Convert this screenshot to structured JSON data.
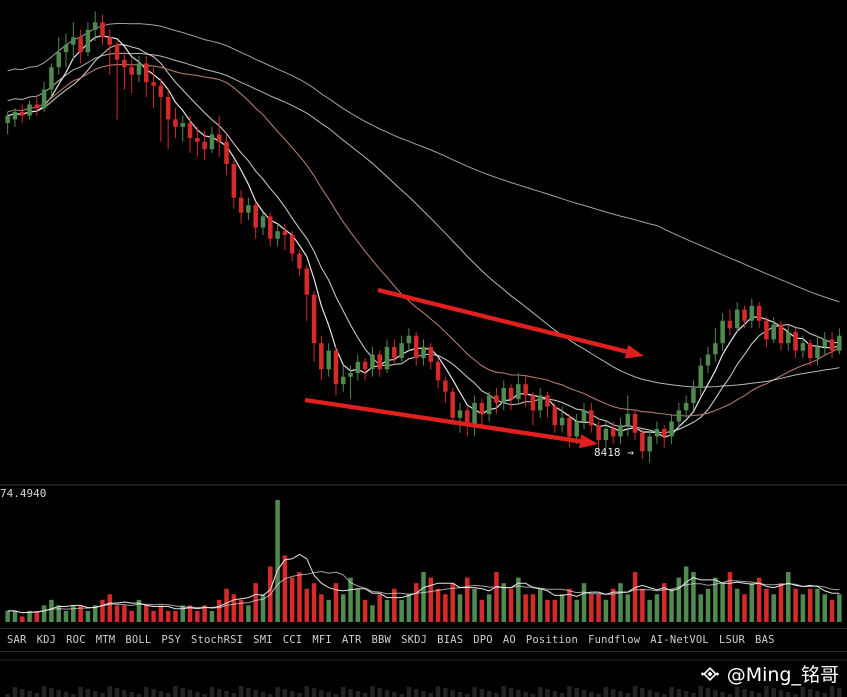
{
  "chart_data": {
    "type": "candlestick",
    "price_label": "8418 →",
    "volume_label": "74.4940",
    "colors": {
      "up": "#4f8a4f",
      "down": "#d42a2a",
      "arrow": "#e01f1f",
      "ma_light": "#e6e6e6",
      "ma_brown": "#b07a6a",
      "background": "#000000"
    },
    "candles": [
      [
        0.51,
        0.53,
        0.48,
        0.54
      ],
      [
        0.52,
        0.54,
        0.5,
        0.55
      ],
      [
        0.54,
        0.53,
        0.51,
        0.56
      ],
      [
        0.53,
        0.56,
        0.52,
        0.57
      ],
      [
        0.56,
        0.55,
        0.53,
        0.58
      ],
      [
        0.55,
        0.6,
        0.54,
        0.62
      ],
      [
        0.6,
        0.66,
        0.58,
        0.67
      ],
      [
        0.66,
        0.7,
        0.64,
        0.74
      ],
      [
        0.7,
        0.72,
        0.66,
        0.75
      ],
      [
        0.72,
        0.74,
        0.68,
        0.78
      ],
      [
        0.74,
        0.7,
        0.67,
        0.76
      ],
      [
        0.7,
        0.76,
        0.69,
        0.78
      ],
      [
        0.76,
        0.78,
        0.73,
        0.81
      ],
      [
        0.78,
        0.74,
        0.72,
        0.8
      ],
      [
        0.74,
        0.72,
        0.64,
        0.76
      ],
      [
        0.72,
        0.68,
        0.52,
        0.73
      ],
      [
        0.68,
        0.66,
        0.6,
        0.7
      ],
      [
        0.66,
        0.64,
        0.59,
        0.68
      ],
      [
        0.64,
        0.67,
        0.62,
        0.69
      ],
      [
        0.67,
        0.62,
        0.58,
        0.69
      ],
      [
        0.62,
        0.61,
        0.55,
        0.66
      ],
      [
        0.61,
        0.58,
        0.46,
        0.63
      ],
      [
        0.58,
        0.52,
        0.44,
        0.6
      ],
      [
        0.52,
        0.5,
        0.47,
        0.55
      ],
      [
        0.5,
        0.51,
        0.46,
        0.53
      ],
      [
        0.51,
        0.47,
        0.43,
        0.53
      ],
      [
        0.47,
        0.46,
        0.42,
        0.5
      ],
      [
        0.46,
        0.44,
        0.41,
        0.49
      ],
      [
        0.44,
        0.48,
        0.43,
        0.5
      ],
      [
        0.48,
        0.46,
        0.42,
        0.53
      ],
      [
        0.46,
        0.4,
        0.37,
        0.48
      ],
      [
        0.4,
        0.31,
        0.28,
        0.41
      ],
      [
        0.31,
        0.27,
        0.24,
        0.33
      ],
      [
        0.27,
        0.29,
        0.25,
        0.31
      ],
      [
        0.29,
        0.23,
        0.2,
        0.3
      ],
      [
        0.23,
        0.26,
        0.21,
        0.27
      ],
      [
        0.26,
        0.2,
        0.18,
        0.27
      ],
      [
        0.2,
        0.22,
        0.18,
        0.24
      ],
      [
        0.22,
        0.21,
        0.17,
        0.24
      ],
      [
        0.21,
        0.16,
        0.14,
        0.22
      ],
      [
        0.16,
        0.12,
        0.1,
        0.17
      ],
      [
        0.12,
        0.05,
        -0.02,
        0.13
      ],
      [
        0.05,
        -0.08,
        -0.13,
        0.06
      ],
      [
        -0.08,
        -0.15,
        -0.18,
        -0.06
      ],
      [
        -0.15,
        -0.1,
        -0.17,
        -0.08
      ],
      [
        -0.1,
        -0.19,
        -0.22,
        -0.09
      ],
      [
        -0.19,
        -0.17,
        -0.21,
        -0.14
      ],
      [
        -0.17,
        -0.16,
        -0.23,
        -0.14
      ],
      [
        -0.16,
        -0.13,
        -0.18,
        -0.11
      ],
      [
        -0.13,
        -0.15,
        -0.18,
        -0.12
      ],
      [
        -0.15,
        -0.11,
        -0.17,
        -0.09
      ],
      [
        -0.11,
        -0.15,
        -0.17,
        -0.1
      ],
      [
        -0.15,
        -0.09,
        -0.16,
        -0.07
      ],
      [
        -0.09,
        -0.12,
        -0.14,
        -0.07
      ],
      [
        -0.12,
        -0.08,
        -0.13,
        -0.06
      ],
      [
        -0.08,
        -0.06,
        -0.1,
        -0.04
      ],
      [
        -0.06,
        -0.12,
        -0.14,
        -0.05
      ],
      [
        -0.12,
        -0.09,
        -0.14,
        -0.07
      ],
      [
        -0.09,
        -0.13,
        -0.15,
        -0.08
      ],
      [
        -0.13,
        -0.18,
        -0.2,
        -0.12
      ],
      [
        -0.18,
        -0.21,
        -0.24,
        -0.17
      ],
      [
        -0.21,
        -0.28,
        -0.3,
        -0.2
      ],
      [
        -0.28,
        -0.26,
        -0.32,
        -0.24
      ],
      [
        -0.26,
        -0.3,
        -0.33,
        -0.25
      ],
      [
        -0.3,
        -0.24,
        -0.33,
        -0.22
      ],
      [
        -0.24,
        -0.27,
        -0.3,
        -0.23
      ],
      [
        -0.27,
        -0.22,
        -0.29,
        -0.21
      ],
      [
        -0.22,
        -0.24,
        -0.27,
        -0.2
      ],
      [
        -0.24,
        -0.2,
        -0.26,
        -0.18
      ],
      [
        -0.2,
        -0.23,
        -0.26,
        -0.19
      ],
      [
        -0.23,
        -0.19,
        -0.24,
        -0.16
      ],
      [
        -0.19,
        -0.22,
        -0.25,
        -0.17
      ],
      [
        -0.22,
        -0.26,
        -0.3,
        -0.21
      ],
      [
        -0.26,
        -0.22,
        -0.28,
        -0.2
      ],
      [
        -0.22,
        -0.25,
        -0.28,
        -0.21
      ],
      [
        -0.25,
        -0.3,
        -0.32,
        -0.24
      ],
      [
        -0.3,
        -0.28,
        -0.32,
        -0.25
      ],
      [
        -0.28,
        -0.33,
        -0.36,
        -0.27
      ],
      [
        -0.33,
        -0.29,
        -0.35,
        -0.27
      ],
      [
        -0.29,
        -0.26,
        -0.31,
        -0.24
      ],
      [
        -0.26,
        -0.3,
        -0.32,
        -0.24
      ],
      [
        -0.3,
        -0.34,
        -0.37,
        -0.29
      ],
      [
        -0.34,
        -0.31,
        -0.36,
        -0.29
      ],
      [
        -0.31,
        -0.33,
        -0.35,
        -0.29
      ],
      [
        -0.33,
        -0.3,
        -0.35,
        -0.28
      ],
      [
        -0.3,
        -0.27,
        -0.33,
        -0.22
      ],
      [
        -0.27,
        -0.32,
        -0.34,
        -0.26
      ],
      [
        -0.32,
        -0.37,
        -0.39,
        -0.31
      ],
      [
        -0.37,
        -0.33,
        -0.4,
        -0.31
      ],
      [
        -0.33,
        -0.31,
        -0.35,
        -0.29
      ],
      [
        -0.31,
        -0.33,
        -0.36,
        -0.3
      ],
      [
        -0.33,
        -0.29,
        -0.35,
        -0.27
      ],
      [
        -0.29,
        -0.26,
        -0.31,
        -0.24
      ],
      [
        -0.26,
        -0.24,
        -0.28,
        -0.22
      ],
      [
        -0.24,
        -0.2,
        -0.26,
        -0.18
      ],
      [
        -0.2,
        -0.14,
        -0.22,
        -0.12
      ],
      [
        -0.14,
        -0.11,
        -0.16,
        -0.09
      ],
      [
        -0.11,
        -0.08,
        -0.13,
        -0.04
      ],
      [
        -0.08,
        -0.02,
        -0.1,
        0.0
      ],
      [
        -0.02,
        -0.04,
        -0.06,
        0.01
      ],
      [
        -0.04,
        0.01,
        -0.05,
        0.03
      ],
      [
        0.01,
        -0.02,
        -0.04,
        0.02
      ],
      [
        -0.02,
        0.02,
        -0.04,
        0.04
      ],
      [
        0.02,
        -0.02,
        -0.04,
        0.03
      ],
      [
        -0.02,
        -0.07,
        -0.09,
        -0.01
      ],
      [
        -0.07,
        -0.03,
        -0.08,
        -0.01
      ],
      [
        -0.03,
        -0.08,
        -0.1,
        -0.02
      ],
      [
        -0.08,
        -0.05,
        -0.1,
        -0.03
      ],
      [
        -0.05,
        -0.1,
        -0.12,
        -0.04
      ],
      [
        -0.1,
        -0.08,
        -0.12,
        -0.06
      ],
      [
        -0.08,
        -0.12,
        -0.14,
        -0.07
      ],
      [
        -0.12,
        -0.09,
        -0.14,
        -0.06
      ],
      [
        -0.09,
        -0.07,
        -0.11,
        -0.05
      ],
      [
        -0.07,
        -0.1,
        -0.12,
        -0.05
      ],
      [
        -0.1,
        -0.06,
        -0.11,
        -0.04
      ]
    ],
    "volumes": [
      2,
      2,
      1,
      2,
      2,
      3,
      4,
      3,
      2,
      3,
      3,
      2,
      3,
      4,
      5,
      3,
      3,
      2,
      4,
      3,
      2,
      3,
      2,
      2,
      3,
      3,
      2,
      3,
      2,
      4,
      6,
      5,
      4,
      3,
      7,
      5,
      10,
      22,
      12,
      8,
      9,
      6,
      7,
      5,
      4,
      7,
      5,
      8,
      6,
      4,
      3,
      5,
      4,
      6,
      4,
      5,
      7,
      9,
      8,
      6,
      5,
      7,
      5,
      8,
      6,
      4,
      5,
      9,
      7,
      6,
      8,
      5,
      5,
      6,
      4,
      4,
      5,
      6,
      4,
      7,
      5,
      5,
      4,
      6,
      7,
      5,
      9,
      6,
      4,
      5,
      7,
      6,
      8,
      10,
      9,
      5,
      6,
      8,
      7,
      9,
      6,
      5,
      7,
      8,
      6,
      5,
      7,
      9,
      6,
      5,
      6,
      6,
      5,
      4,
      5
    ]
  },
  "indicator_tabs": [
    "SAR",
    "KDJ",
    "ROC",
    "MTM",
    "BOLL",
    "PSY",
    "StochRSI",
    "SMI",
    "CCI",
    "MFI",
    "ATR",
    "BBW",
    "SKDJ",
    "BIAS",
    "DPO",
    "AO",
    "Position",
    "Fundflow",
    "AI-NetVOL",
    "LSUR",
    "BAS"
  ],
  "watermark": {
    "text": "@Ming_铭哥",
    "icon": "binance-diamond-icon"
  }
}
